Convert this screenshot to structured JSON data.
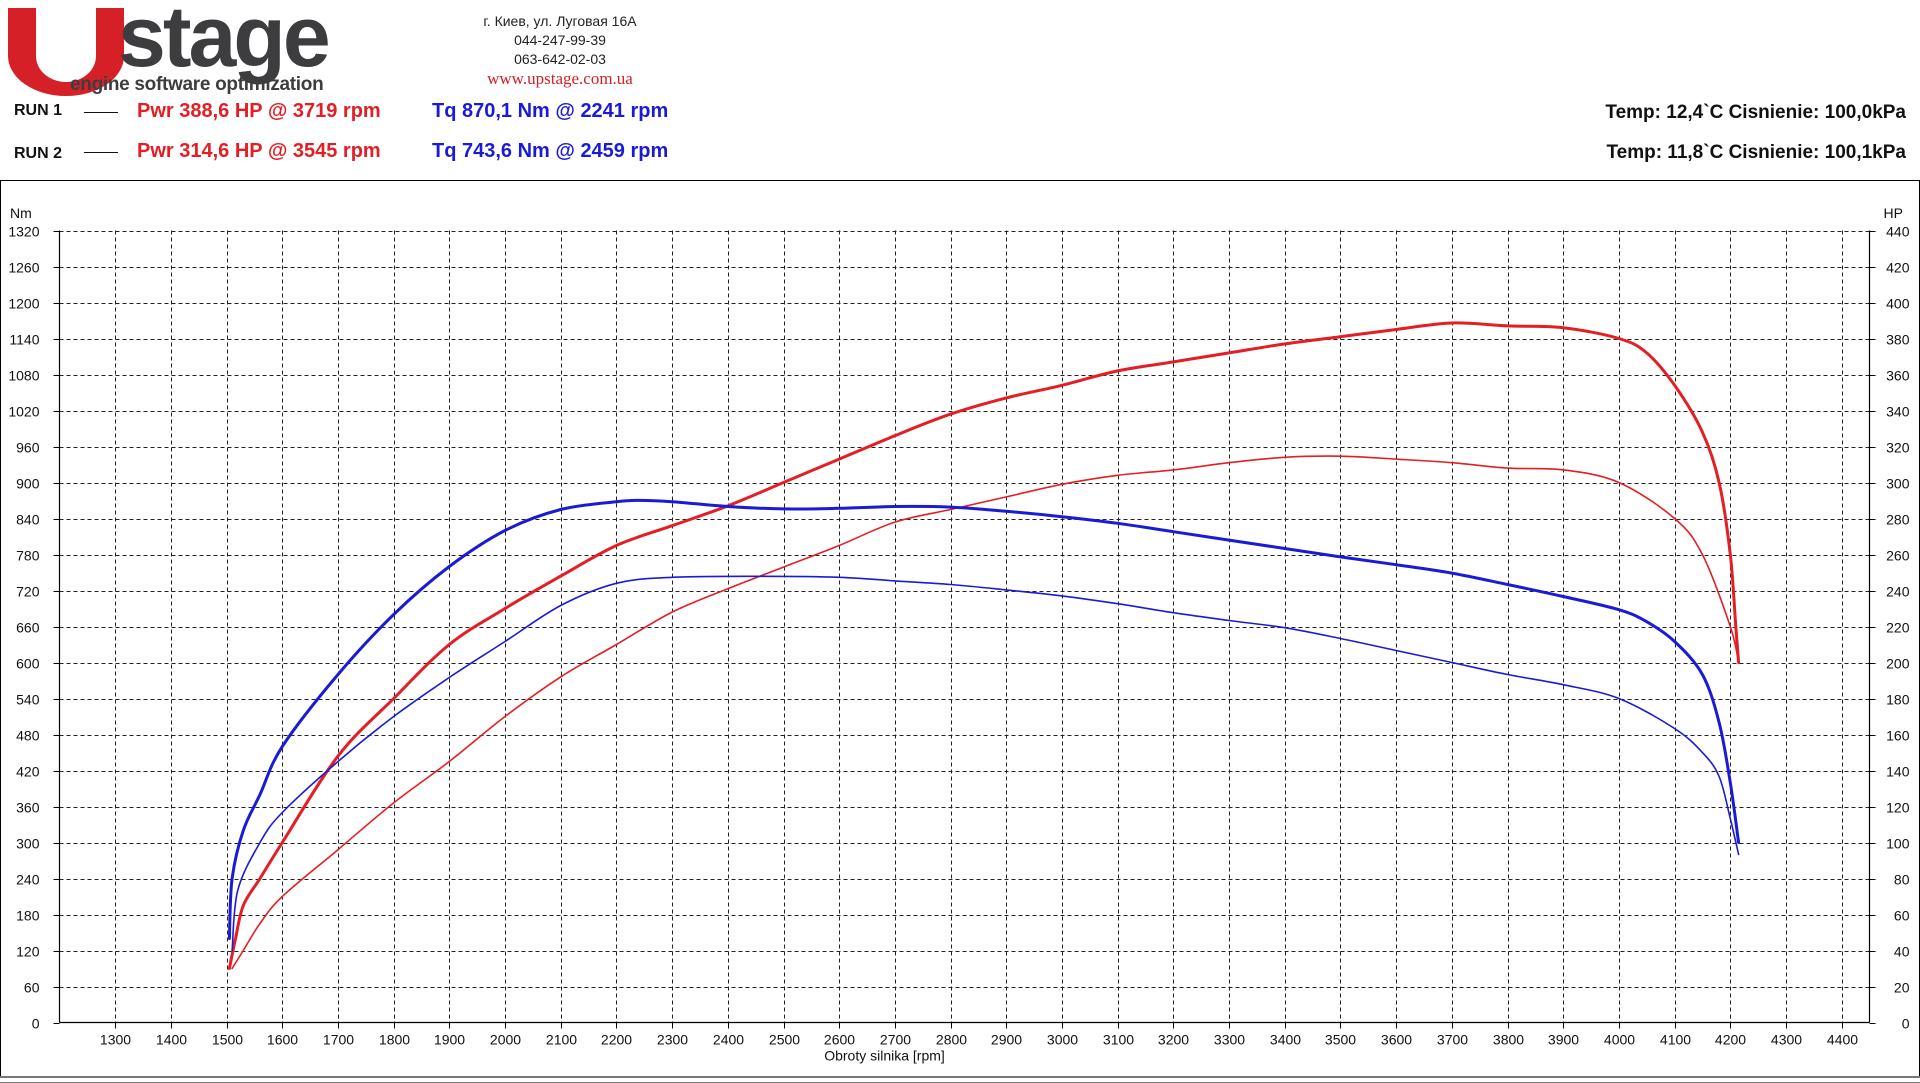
{
  "header": {
    "logo_text": "stage",
    "logo_tagline": "engine software optimization",
    "address_line1": "г. Киев, ул. Луговая 16А",
    "phone1": "044-247-99-39",
    "phone2": "063-642-02-03",
    "website": "www.upstage.com.ua",
    "colors": {
      "brand_red": "#d62027",
      "brand_gray": "#3d3d3f"
    }
  },
  "runs": [
    {
      "label": "RUN 1",
      "pwr": "Pwr  388,6 HP @ 3719 rpm",
      "tq": "Tq 870,1 Nm @ 2241 rpm",
      "conditions": "Temp: 12,4`C    Cisnienie: 100,0kPa"
    },
    {
      "label": "RUN 2",
      "pwr": "Pwr  314,6 HP @ 3545 rpm",
      "tq": "Tq 743,6 Nm @ 2459 rpm",
      "conditions": "Temp: 11,8`C    Cisnienie: 100,1kPa"
    }
  ],
  "chart_data": {
    "type": "line",
    "xlabel": "Obroty silnika [rpm]",
    "ylabel_left": "Nm",
    "ylabel_right": "HP",
    "xlim": [
      1200,
      4450
    ],
    "ylim_left": [
      0,
      1320
    ],
    "ylim_right": [
      0,
      440
    ],
    "x_ticks": [
      1300,
      1400,
      1500,
      1600,
      1700,
      1800,
      1900,
      2000,
      2100,
      2200,
      2300,
      2400,
      2500,
      2600,
      2700,
      2800,
      2900,
      3000,
      3100,
      3200,
      3300,
      3400,
      3500,
      3600,
      3700,
      3800,
      3900,
      4000,
      4100,
      4200,
      4300,
      4400
    ],
    "y_ticks_left": [
      0,
      60,
      120,
      180,
      240,
      300,
      360,
      420,
      480,
      540,
      600,
      660,
      720,
      780,
      840,
      900,
      960,
      1020,
      1080,
      1140,
      1200,
      1260,
      1320
    ],
    "y_ticks_right": [
      0,
      20,
      40,
      60,
      80,
      100,
      120,
      140,
      160,
      180,
      200,
      220,
      240,
      260,
      280,
      300,
      320,
      340,
      360,
      380,
      400,
      420,
      440
    ],
    "grid": true,
    "series": [
      {
        "run": "RUN 1",
        "quantity": "power",
        "unit": "HP",
        "axis": "right",
        "color": "#e31e24",
        "width": 3,
        "points": [
          [
            1505,
            30
          ],
          [
            1515,
            45
          ],
          [
            1530,
            65
          ],
          [
            1560,
            80
          ],
          [
            1600,
            100
          ],
          [
            1700,
            148
          ],
          [
            1800,
            180
          ],
          [
            1900,
            210
          ],
          [
            2000,
            230
          ],
          [
            2100,
            248
          ],
          [
            2200,
            265
          ],
          [
            2300,
            276
          ],
          [
            2400,
            287
          ],
          [
            2500,
            300
          ],
          [
            2600,
            313
          ],
          [
            2700,
            326
          ],
          [
            2800,
            338
          ],
          [
            2900,
            347
          ],
          [
            3000,
            354
          ],
          [
            3100,
            362
          ],
          [
            3200,
            367
          ],
          [
            3300,
            372
          ],
          [
            3400,
            377
          ],
          [
            3500,
            381
          ],
          [
            3600,
            385
          ],
          [
            3700,
            388.6
          ],
          [
            3800,
            387
          ],
          [
            3900,
            386
          ],
          [
            4000,
            380
          ],
          [
            4050,
            372
          ],
          [
            4100,
            354
          ],
          [
            4150,
            328
          ],
          [
            4180,
            300
          ],
          [
            4200,
            260
          ],
          [
            4210,
            220
          ],
          [
            4215,
            200
          ]
        ]
      },
      {
        "run": "RUN 2",
        "quantity": "power",
        "unit": "HP",
        "axis": "right",
        "color": "#e31e24",
        "width": 1.6,
        "points": [
          [
            1510,
            30
          ],
          [
            1530,
            40
          ],
          [
            1560,
            55
          ],
          [
            1600,
            70
          ],
          [
            1700,
            96
          ],
          [
            1800,
            122
          ],
          [
            1900,
            145
          ],
          [
            2000,
            170
          ],
          [
            2100,
            192
          ],
          [
            2200,
            210
          ],
          [
            2300,
            228
          ],
          [
            2400,
            241
          ],
          [
            2500,
            253
          ],
          [
            2600,
            265
          ],
          [
            2700,
            278
          ],
          [
            2800,
            285
          ],
          [
            2900,
            292
          ],
          [
            3000,
            299
          ],
          [
            3100,
            304
          ],
          [
            3200,
            307
          ],
          [
            3300,
            311
          ],
          [
            3400,
            314
          ],
          [
            3500,
            314.6
          ],
          [
            3600,
            313
          ],
          [
            3700,
            311
          ],
          [
            3800,
            308
          ],
          [
            3900,
            307
          ],
          [
            4000,
            300
          ],
          [
            4100,
            280
          ],
          [
            4150,
            260
          ],
          [
            4200,
            220
          ],
          [
            4215,
            200
          ]
        ]
      },
      {
        "run": "RUN 1",
        "quantity": "torque",
        "unit": "Nm",
        "axis": "left",
        "color": "#1b1bd6",
        "width": 3,
        "points": [
          [
            1505,
            140
          ],
          [
            1510,
            240
          ],
          [
            1530,
            320
          ],
          [
            1560,
            380
          ],
          [
            1600,
            460
          ],
          [
            1700,
            580
          ],
          [
            1800,
            680
          ],
          [
            1900,
            760
          ],
          [
            2000,
            820
          ],
          [
            2100,
            855
          ],
          [
            2200,
            868
          ],
          [
            2241,
            870.1
          ],
          [
            2300,
            868
          ],
          [
            2400,
            860
          ],
          [
            2500,
            856
          ],
          [
            2600,
            857
          ],
          [
            2700,
            860
          ],
          [
            2800,
            859
          ],
          [
            2900,
            852
          ],
          [
            3000,
            843
          ],
          [
            3100,
            832
          ],
          [
            3200,
            818
          ],
          [
            3300,
            804
          ],
          [
            3400,
            790
          ],
          [
            3500,
            776
          ],
          [
            3600,
            763
          ],
          [
            3700,
            749
          ],
          [
            3800,
            730
          ],
          [
            3900,
            710
          ],
          [
            4000,
            688
          ],
          [
            4050,
            668
          ],
          [
            4100,
            635
          ],
          [
            4150,
            580
          ],
          [
            4180,
            500
          ],
          [
            4200,
            400
          ],
          [
            4215,
            300
          ]
        ]
      },
      {
        "run": "RUN 2",
        "quantity": "torque",
        "unit": "Nm",
        "axis": "left",
        "color": "#1b1bd6",
        "width": 1.6,
        "points": [
          [
            1510,
            120
          ],
          [
            1520,
            220
          ],
          [
            1560,
            300
          ],
          [
            1600,
            350
          ],
          [
            1700,
            435
          ],
          [
            1800,
            510
          ],
          [
            1900,
            575
          ],
          [
            2000,
            635
          ],
          [
            2100,
            695
          ],
          [
            2200,
            732
          ],
          [
            2300,
            742
          ],
          [
            2459,
            743.6
          ],
          [
            2600,
            742
          ],
          [
            2700,
            736
          ],
          [
            2800,
            730
          ],
          [
            2900,
            721
          ],
          [
            3000,
            711
          ],
          [
            3100,
            698
          ],
          [
            3200,
            683
          ],
          [
            3300,
            670
          ],
          [
            3400,
            658
          ],
          [
            3500,
            640
          ],
          [
            3600,
            620
          ],
          [
            3700,
            600
          ],
          [
            3800,
            580
          ],
          [
            3900,
            563
          ],
          [
            4000,
            540
          ],
          [
            4100,
            490
          ],
          [
            4150,
            450
          ],
          [
            4180,
            410
          ],
          [
            4200,
            340
          ],
          [
            4215,
            280
          ]
        ]
      }
    ]
  }
}
